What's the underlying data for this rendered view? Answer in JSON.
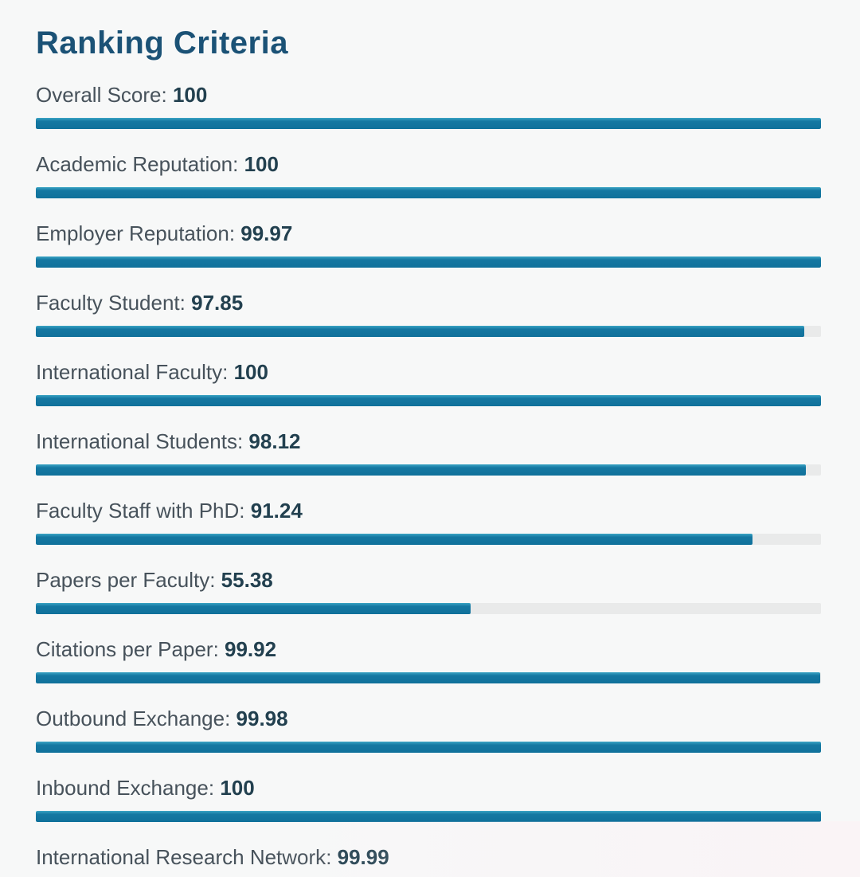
{
  "title": "Ranking Criteria",
  "colors": {
    "title": "#1b5276",
    "label": "#47525b",
    "value": "#22404f",
    "bar_fill": "#1478a1",
    "bar_track": "#e9eaea",
    "background": "#f7f8f8"
  },
  "metrics": [
    {
      "label": "Overall Score",
      "value": "100",
      "percent": 100
    },
    {
      "label": "Academic Reputation",
      "value": "100",
      "percent": 100
    },
    {
      "label": "Employer Reputation",
      "value": "99.97",
      "percent": 99.97
    },
    {
      "label": "Faculty Student",
      "value": "97.85",
      "percent": 97.85
    },
    {
      "label": "International Faculty",
      "value": "100",
      "percent": 100
    },
    {
      "label": "International Students",
      "value": "98.12",
      "percent": 98.12
    },
    {
      "label": "Faculty Staff with PhD",
      "value": "91.24",
      "percent": 91.24
    },
    {
      "label": "Papers per Faculty",
      "value": "55.38",
      "percent": 55.38
    },
    {
      "label": "Citations per Paper",
      "value": "99.92",
      "percent": 99.92
    },
    {
      "label": "Outbound Exchange",
      "value": "99.98",
      "percent": 99.98
    },
    {
      "label": "Inbound Exchange",
      "value": "100",
      "percent": 100
    },
    {
      "label": "International Research Network",
      "value": "99.99",
      "percent": 99.99
    }
  ],
  "chart_data": {
    "type": "bar",
    "orientation": "horizontal",
    "title": "Ranking Criteria",
    "categories": [
      "Overall Score",
      "Academic Reputation",
      "Employer Reputation",
      "Faculty Student",
      "International Faculty",
      "International Students",
      "Faculty Staff with PhD",
      "Papers per Faculty",
      "Citations per Paper",
      "Outbound Exchange",
      "Inbound Exchange",
      "International Research Network"
    ],
    "values": [
      100,
      100,
      99.97,
      97.85,
      100,
      98.12,
      91.24,
      55.38,
      99.92,
      99.98,
      100,
      99.99
    ],
    "xlabel": "",
    "ylabel": "",
    "xlim": [
      0,
      100
    ],
    "grid": false,
    "legend": false,
    "data_labels": "inline with category label, bold"
  }
}
